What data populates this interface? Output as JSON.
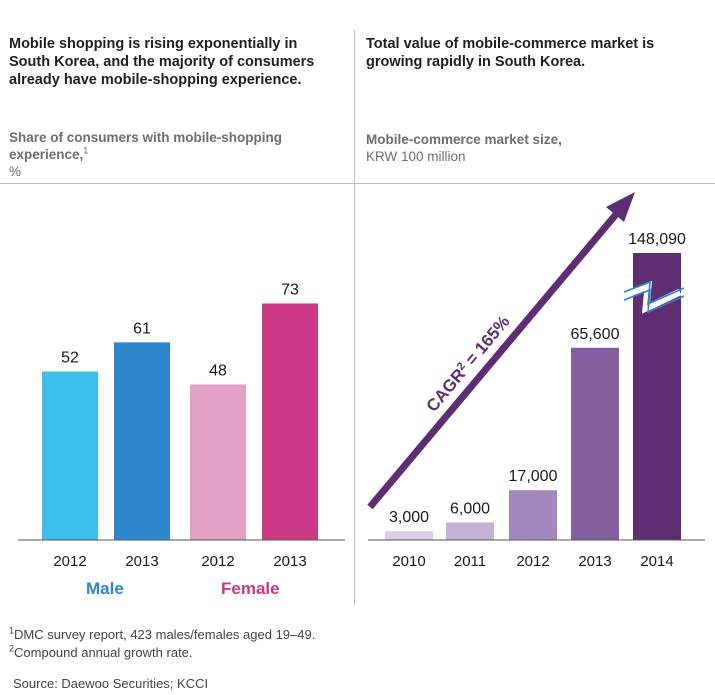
{
  "left_panel": {
    "title": "Mobile shopping is rising exponentially in South Korea, and the majority of consumers already have mobile-shopping experience.",
    "subtitle": "Share of consumers with mobile-shopping experience,",
    "subtitle_sup": "1",
    "unit": "%"
  },
  "right_panel": {
    "title": "Total value of mobile-commerce market is growing rapidly in South Korea.",
    "subtitle": "Mobile-commerce market size,",
    "unit": "KRW 100 million"
  },
  "chart_data": [
    {
      "type": "bar",
      "title": "Share of consumers with mobile-shopping experience, %",
      "categories": [
        "2012",
        "2013",
        "2012",
        "2013"
      ],
      "groups": [
        {
          "name": "Male",
          "color": "#2e84c6",
          "categories": [
            "2012",
            "2013"
          ],
          "values": [
            52,
            61
          ],
          "bar_colors": [
            "#3dbfee",
            "#2e86cc"
          ]
        },
        {
          "name": "Female",
          "color": "#c63a80",
          "categories": [
            "2012",
            "2013"
          ],
          "values": [
            48,
            73
          ],
          "bar_colors": [
            "#e2a0c4",
            "#cc3a85"
          ]
        }
      ],
      "data_labels": [
        "52",
        "61",
        "48",
        "73"
      ],
      "ylim": [
        0,
        85
      ],
      "xlabel": "",
      "ylabel": ""
    },
    {
      "type": "bar",
      "title": "Mobile-commerce market size, KRW 100 million",
      "categories": [
        "2010",
        "2011",
        "2012",
        "2013",
        "2014"
      ],
      "values": [
        3000,
        6000,
        17000,
        65600,
        148090
      ],
      "data_labels": [
        "3,000",
        "6,000",
        "17,000",
        "65,600",
        "148,090"
      ],
      "bar_colors": [
        "#dcd0e6",
        "#c6b0d6",
        "#a487bd",
        "#82609f",
        "#5e2d74"
      ],
      "axis_break": true,
      "ylim": [
        0,
        100000
      ],
      "annotation": {
        "text_main": "CAGR",
        "text_sup": "2",
        "text_tail": " = 165%",
        "color": "#5e2d74"
      },
      "xlabel": "",
      "ylabel": ""
    }
  ],
  "group_labels": {
    "male": "Male",
    "female": "Female"
  },
  "footnotes": [
    {
      "sup": "1",
      "text": "DMC survey report, 423 males/females aged 19–49."
    },
    {
      "sup": "2",
      "text": "Compound annual growth rate."
    }
  ],
  "source": "Source: Daewoo Securities; KCCI"
}
